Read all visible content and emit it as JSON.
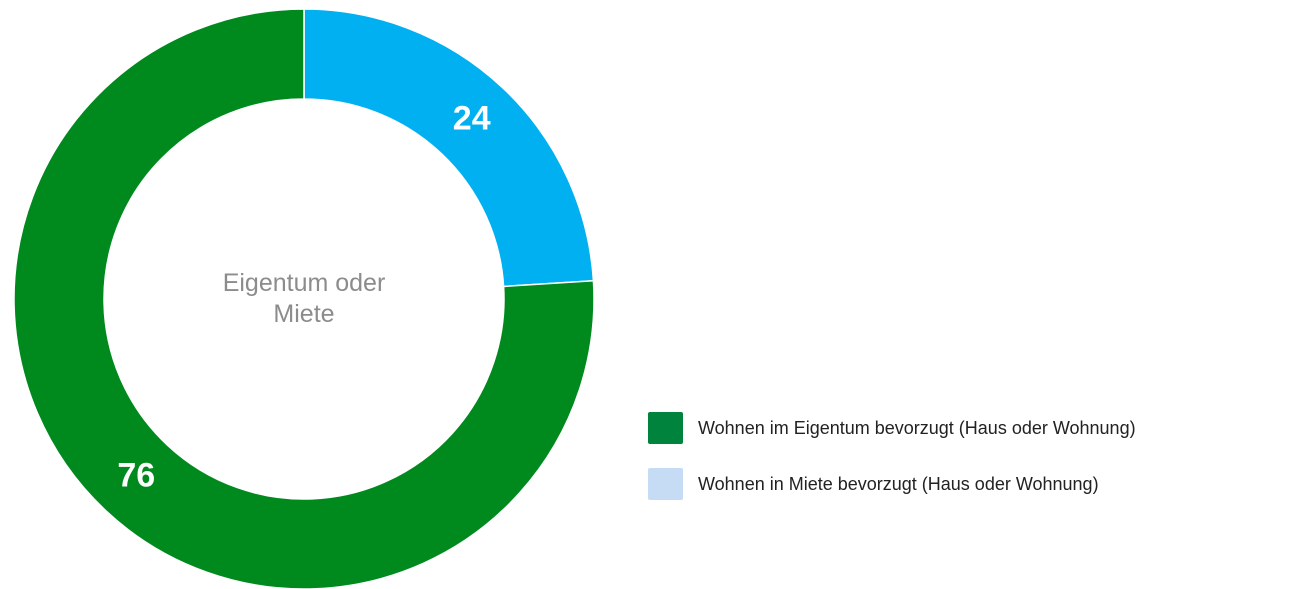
{
  "chart_data": {
    "type": "donut",
    "center_label": "Eigentum oder Miete",
    "categories": [
      "Wohnen im Eigentum bevorzugt (Haus oder Wohnung)",
      "Wohnen in Miete bevorzugt (Haus oder Wohnung)"
    ],
    "values": [
      76,
      24
    ],
    "colors": [
      "#008a1e",
      "#00b0f0"
    ],
    "legend_colors": [
      "#00843d",
      "#c6dcf5"
    ],
    "start": "top-counterclockwise-first-last",
    "legend": "right"
  }
}
